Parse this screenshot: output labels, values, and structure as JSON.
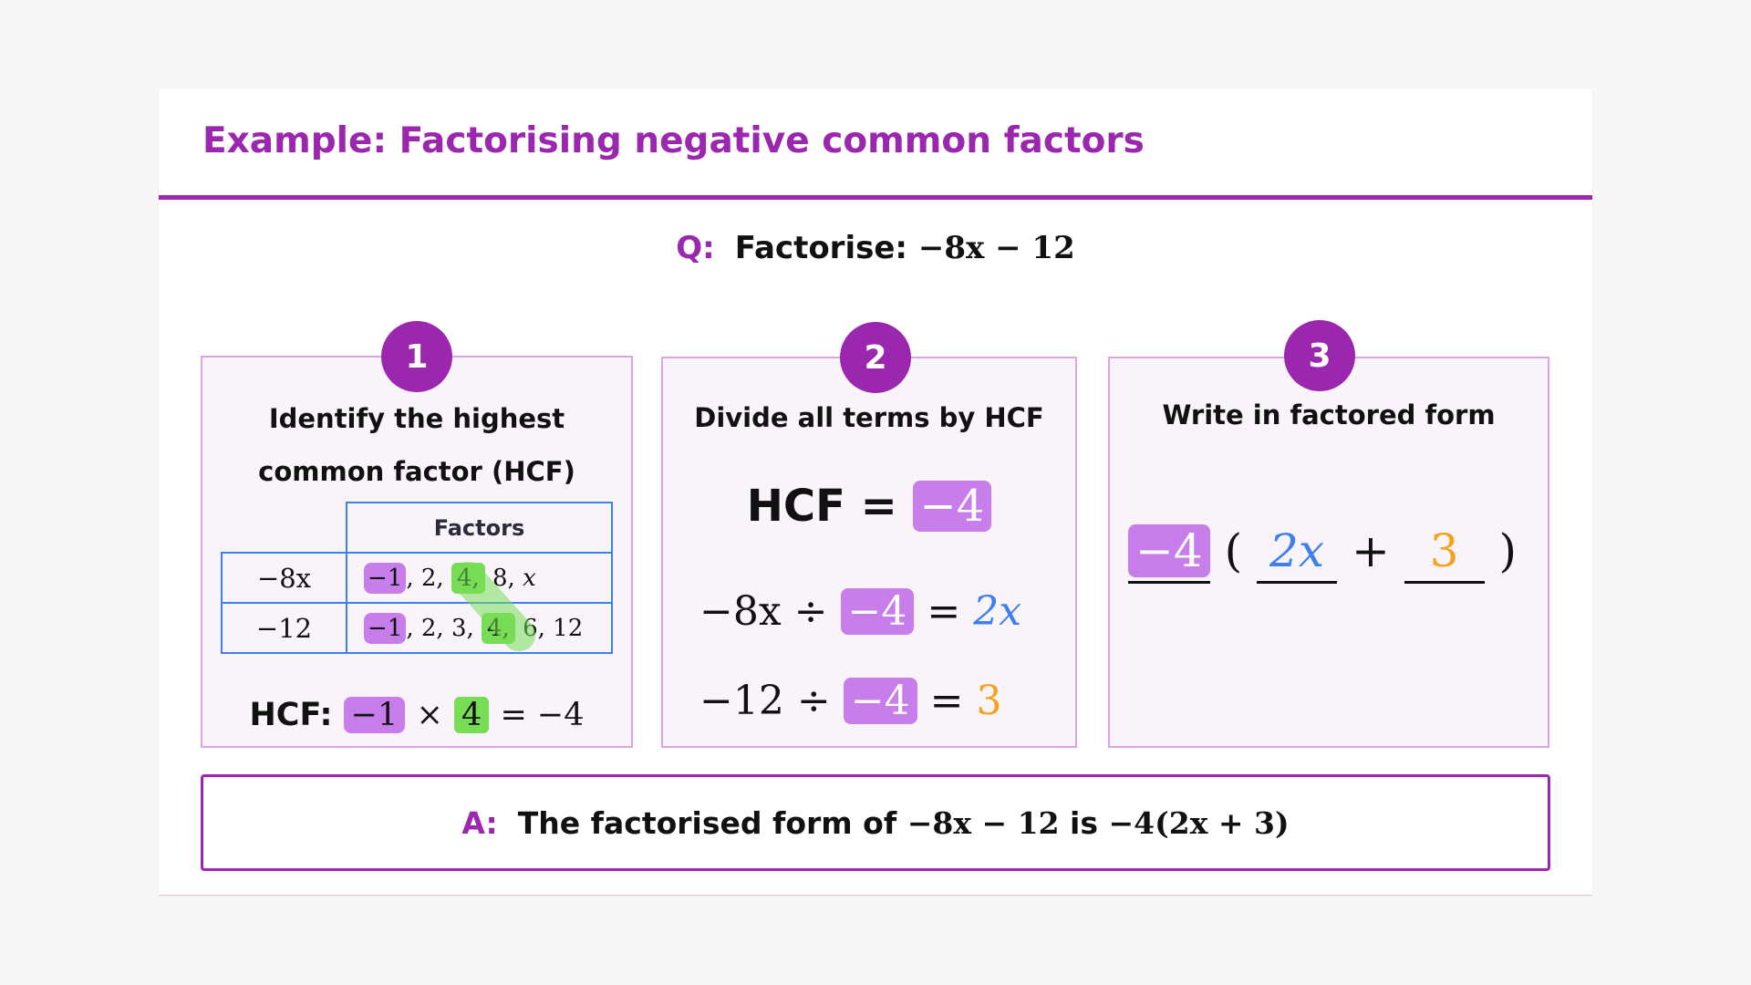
{
  "header": {
    "title": "Example: Factorising negative common factors"
  },
  "question": {
    "letter": "Q:",
    "label": "Factorise:",
    "expression": "−8x − 12"
  },
  "steps": [
    {
      "number": "1",
      "title_line1": "Identify the highest",
      "title_line2": "common factor (HCF)",
      "table": {
        "header": "Factors",
        "rows": [
          {
            "term": "−8x",
            "neg1": "−1",
            "f2": "2,",
            "f4": "4,",
            "rest": "8,",
            "var": "x"
          },
          {
            "term": "−12",
            "neg1": "−1",
            "f2": "2,",
            "f3": "3,",
            "f4": "4,",
            "rest": "6, 12"
          }
        ]
      },
      "hcf_label": "HCF:",
      "hcf_a": "−1",
      "times": "×",
      "hcf_b": "4",
      "hcf_result": "= −4"
    },
    {
      "number": "2",
      "title": "Divide all terms by HCF",
      "hcf_label": "HCF =",
      "hcf_value": "−4",
      "line1": {
        "term": "−8x ÷",
        "divisor": "−4",
        "eq": "=",
        "result": "2x"
      },
      "line2": {
        "term": "−12 ÷",
        "divisor": "−4",
        "eq": "=",
        "result": "3"
      }
    },
    {
      "number": "3",
      "title": "Write in factored form",
      "factor": "−4",
      "open": "(",
      "term1": "2x",
      "plus": "+",
      "term2": "3",
      "close": ")"
    }
  ],
  "answer": {
    "letter": "A:",
    "text1": "The factorised form of",
    "expr1": "−8x − 12",
    "text2": "is",
    "expr2": "−4(2x + 3)"
  },
  "colors": {
    "accent": "#9b27af",
    "purple_highlight": "#c77dea",
    "green_highlight": "#77dd55",
    "blue": "#3d7ef0",
    "orange": "#f4a21d"
  }
}
